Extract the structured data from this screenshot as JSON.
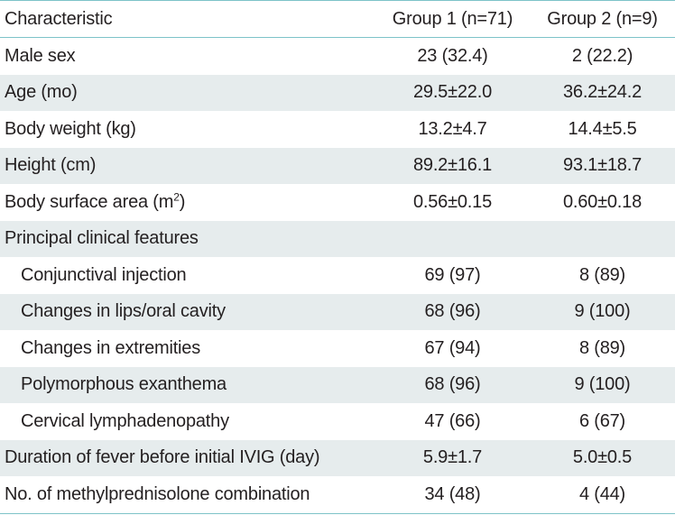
{
  "header": {
    "label": "Characteristic",
    "group1": "Group 1 (n=71)",
    "group2": "Group 2 (n=9)"
  },
  "rows": [
    {
      "label": "Male sex",
      "g1": "23 (32.4)",
      "g2": "2 (22.2)",
      "indent": false,
      "shaded": false
    },
    {
      "label": "Age (mo)",
      "g1": "29.5±22.0",
      "g2": "36.2±24.2",
      "indent": false,
      "shaded": true
    },
    {
      "label": "Body weight (kg)",
      "g1": "13.2±4.7",
      "g2": "14.4±5.5",
      "indent": false,
      "shaded": false
    },
    {
      "label": "Height (cm)",
      "g1": "89.2±16.1",
      "g2": "93.1±18.7",
      "indent": false,
      "shaded": true
    },
    {
      "label": "Body surface area (m",
      "label_sup": "2",
      "label_suffix": ")",
      "g1": "0.56±0.15",
      "g2": "0.60±0.18",
      "indent": false,
      "shaded": false
    },
    {
      "label": "Principal clinical features",
      "g1": "",
      "g2": "",
      "indent": false,
      "shaded": true
    },
    {
      "label": "Conjunctival injection",
      "g1": "69 (97)",
      "g2": "8 (89)",
      "indent": true,
      "shaded": false
    },
    {
      "label": "Changes in lips/oral cavity",
      "g1": "68 (96)",
      "g2": "9 (100)",
      "indent": true,
      "shaded": true
    },
    {
      "label": "Changes in extremities",
      "g1": "67 (94)",
      "g2": "8 (89)",
      "indent": true,
      "shaded": false
    },
    {
      "label": "Polymorphous exanthema",
      "g1": "68 (96)",
      "g2": "9 (100)",
      "indent": true,
      "shaded": true
    },
    {
      "label": "Cervical lymphadenopathy",
      "g1": "47 (66)",
      "g2": "6 (67)",
      "indent": true,
      "shaded": false
    },
    {
      "label": "Duration of fever before initial IVIG (day)",
      "g1": "5.9±1.7",
      "g2": "5.0±0.5",
      "indent": false,
      "shaded": true
    },
    {
      "label": "No. of methylprednisolone combination",
      "g1": "34 (48)",
      "g2": "4 (44)",
      "indent": false,
      "shaded": false
    }
  ],
  "colors": {
    "rule": "#7dc3c8",
    "shade": "#e6eced",
    "text": "#231f20"
  }
}
